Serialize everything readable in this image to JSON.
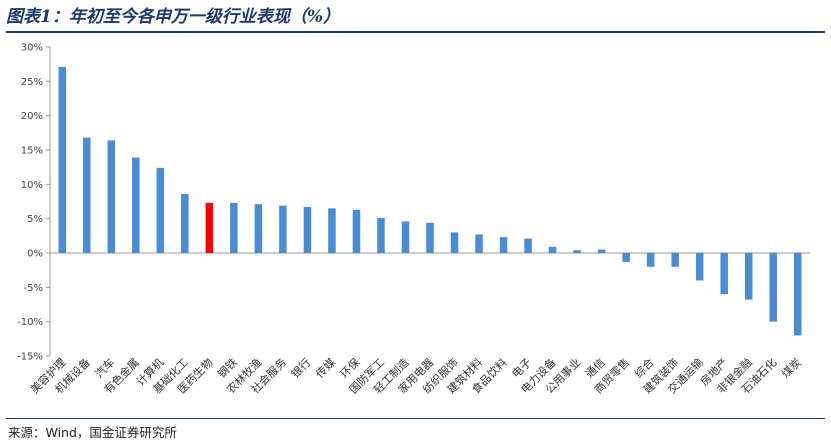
{
  "header": {
    "title": "图表1：年初至今各申万一级行业表现（%）"
  },
  "source": {
    "text": "来源：Wind，国金证券研究所"
  },
  "colors": {
    "bar": "#4a8bd6",
    "highlight": "#ff0000",
    "axis": "#999999",
    "title": "#1b3a6b"
  },
  "chart_data": {
    "type": "bar",
    "title": "图表1：年初至今各申万一级行业表现（%）",
    "xlabel": "",
    "ylabel": "",
    "ylim": [
      -15,
      30
    ],
    "yticks": [
      -15,
      -10,
      -5,
      0,
      5,
      10,
      15,
      20,
      25,
      30
    ],
    "ytick_labels": [
      "-15%",
      "-10%",
      "-5%",
      "0%",
      "5%",
      "10%",
      "15%",
      "20%",
      "25%",
      "30%"
    ],
    "grid": false,
    "legend": "none",
    "highlight_category": "医药生物",
    "categories": [
      "美容护理",
      "机械设备",
      "汽车",
      "有色金属",
      "计算机",
      "基础化工",
      "医药生物",
      "钢铁",
      "农林牧渔",
      "社会服务",
      "银行",
      "传媒",
      "环保",
      "国防军工",
      "轻工制造",
      "家用电器",
      "纺织服饰",
      "建筑材料",
      "食品饮料",
      "电子",
      "电力设备",
      "公用事业",
      "通信",
      "商贸零售",
      "综合",
      "建筑装饰",
      "交通运输",
      "房地产",
      "非银金融",
      "石油石化",
      "煤炭"
    ],
    "values": [
      27.1,
      16.8,
      16.4,
      13.9,
      12.4,
      8.6,
      7.3,
      7.3,
      7.1,
      6.9,
      6.7,
      6.5,
      6.3,
      5.1,
      4.6,
      4.4,
      3.0,
      2.7,
      2.3,
      2.1,
      0.9,
      0.4,
      0.5,
      -1.3,
      -2.0,
      -2.0,
      -4.0,
      -6.0,
      -6.8,
      -10.0,
      -12.0
    ]
  }
}
